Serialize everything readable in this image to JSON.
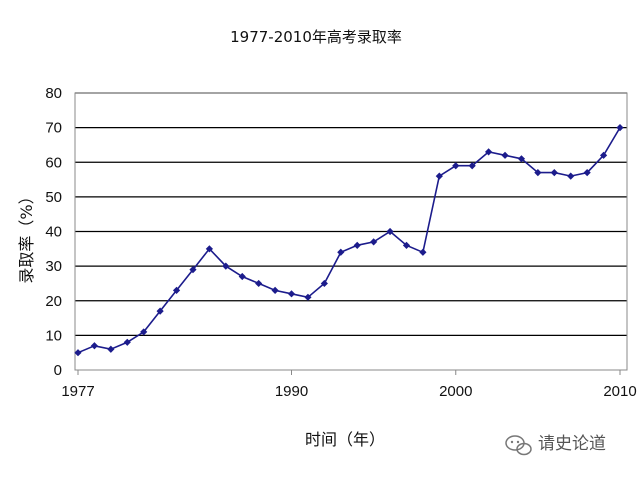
{
  "chart_data": {
    "type": "line",
    "title": "1977-2010年高考录取率",
    "xlabel": "时间（年）",
    "ylabel": "录取率（%）",
    "xlim": [
      1977,
      2010
    ],
    "ylim": [
      0,
      80
    ],
    "xticks": [
      1977,
      1990,
      2000,
      2010
    ],
    "yticks": [
      0,
      10,
      20,
      30,
      40,
      50,
      60,
      70,
      80
    ],
    "grid": "horizontal",
    "series": [
      {
        "color": "#1c1c8c",
        "x": [
          1977,
          1978,
          1979,
          1980,
          1981,
          1982,
          1983,
          1984,
          1985,
          1986,
          1987,
          1988,
          1989,
          1990,
          1991,
          1992,
          1993,
          1994,
          1995,
          1996,
          1997,
          1998,
          1999,
          2000,
          2001,
          2002,
          2003,
          2004,
          2005,
          2006,
          2007,
          2008,
          2009,
          2010
        ],
        "y": [
          5,
          7,
          6,
          8,
          11,
          17,
          23,
          29,
          35,
          30,
          27,
          25,
          23,
          22,
          21,
          25,
          34,
          36,
          37,
          40,
          36,
          34,
          56,
          59,
          59,
          63,
          62,
          61,
          57,
          57,
          56,
          57,
          62,
          70
        ]
      }
    ]
  },
  "watermark": {
    "icon": "wechat-icon",
    "text": "请史论道"
  }
}
